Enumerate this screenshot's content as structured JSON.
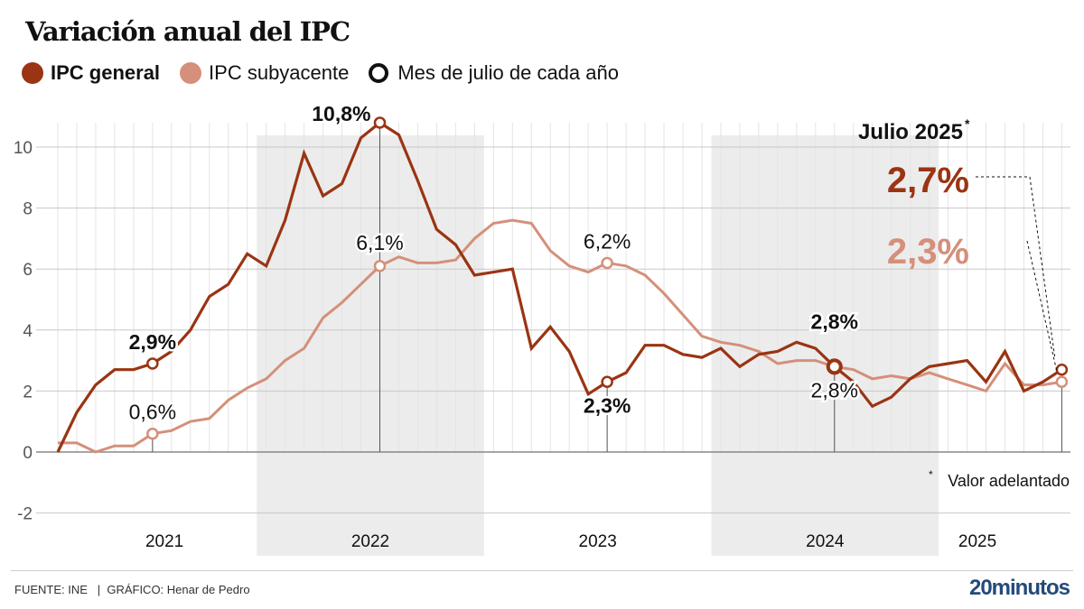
{
  "title": "Variación anual del IPC",
  "legend": [
    {
      "label": "IPC general",
      "color": "#9a3412",
      "bold": true,
      "marker": "dot"
    },
    {
      "label": "IPC subyacente",
      "color": "#d4907a",
      "bold": false,
      "marker": "dot"
    },
    {
      "label": "Mes de julio de cada año",
      "color": "#111111",
      "bold": false,
      "marker": "ring"
    }
  ],
  "footer": {
    "source": "FUENTE: INE   |  GRÁFICO: Henar de Pedro",
    "brand": "20minutos"
  },
  "chart_data": {
    "type": "line",
    "title": "Variación anual del IPC",
    "xlabel": "",
    "ylabel": "",
    "ylim": [
      -2,
      11
    ],
    "yticks": [
      -2,
      0,
      2,
      4,
      6,
      8,
      10
    ],
    "grid": true,
    "legend_position": "top-left",
    "x_start": "2021-02",
    "x_frequency": "monthly",
    "year_labels": [
      {
        "label": "2021",
        "shaded": false
      },
      {
        "label": "2022",
        "shaded": true
      },
      {
        "label": "2023",
        "shaded": false
      },
      {
        "label": "2024",
        "shaded": true
      },
      {
        "label": "2025",
        "shaded": false
      }
    ],
    "series": [
      {
        "name": "IPC general",
        "color": "#9a3412",
        "values": [
          0.0,
          1.3,
          2.2,
          2.7,
          2.7,
          2.9,
          3.3,
          4.0,
          5.1,
          5.5,
          6.5,
          6.1,
          7.6,
          9.8,
          8.4,
          8.8,
          10.3,
          10.8,
          10.4,
          8.9,
          7.3,
          6.8,
          5.8,
          5.9,
          6.0,
          3.4,
          4.1,
          3.3,
          1.9,
          2.3,
          2.6,
          3.5,
          3.5,
          3.2,
          3.1,
          3.4,
          2.8,
          3.2,
          3.3,
          3.6,
          3.4,
          2.8,
          2.3,
          1.5,
          1.8,
          2.4,
          2.8,
          2.9,
          3.0,
          2.3,
          3.3,
          2.0,
          2.3,
          2.7
        ]
      },
      {
        "name": "IPC subyacente",
        "color": "#d4907a",
        "values": [
          0.3,
          0.3,
          0.0,
          0.2,
          0.2,
          0.6,
          0.7,
          1.0,
          1.1,
          1.7,
          2.1,
          2.4,
          3.0,
          3.4,
          4.4,
          4.9,
          5.5,
          6.1,
          6.4,
          6.2,
          6.2,
          6.3,
          7.0,
          7.5,
          7.6,
          7.5,
          6.6,
          6.1,
          5.9,
          6.2,
          6.1,
          5.8,
          5.2,
          4.5,
          3.8,
          3.6,
          3.5,
          3.3,
          2.9,
          3.0,
          3.0,
          2.8,
          2.7,
          2.4,
          2.5,
          2.4,
          2.6,
          2.4,
          2.2,
          2.0,
          2.9,
          2.2,
          2.2,
          2.3
        ]
      }
    ],
    "annotations": [
      {
        "month_index": 5,
        "series": 0,
        "text": "2,9%",
        "bold": true,
        "position": "above"
      },
      {
        "month_index": 5,
        "series": 1,
        "text": "0,6%",
        "bold": false,
        "position": "above"
      },
      {
        "month_index": 17,
        "series": 0,
        "text": "10,8%",
        "bold": true,
        "position": "above-left"
      },
      {
        "month_index": 17,
        "series": 1,
        "text": "6,1%",
        "bold": false,
        "position": "above"
      },
      {
        "month_index": 29,
        "series": 1,
        "text": "6,2%",
        "bold": false,
        "position": "above"
      },
      {
        "month_index": 29,
        "series": 0,
        "text": "2,3%",
        "bold": true,
        "position": "below"
      },
      {
        "month_index": 41,
        "series": 0,
        "text": "2,8%",
        "bold": true,
        "position": "above"
      },
      {
        "month_index": 41,
        "series": 1,
        "text": "2,8%",
        "bold": false,
        "position": "below"
      }
    ],
    "callout": {
      "heading": "Julio 2025",
      "heading_mark": "*",
      "general_value": "2,7%",
      "subyacente_value": "2,3%",
      "footnote_mark": "*",
      "footnote": "Valor adelantado"
    }
  }
}
